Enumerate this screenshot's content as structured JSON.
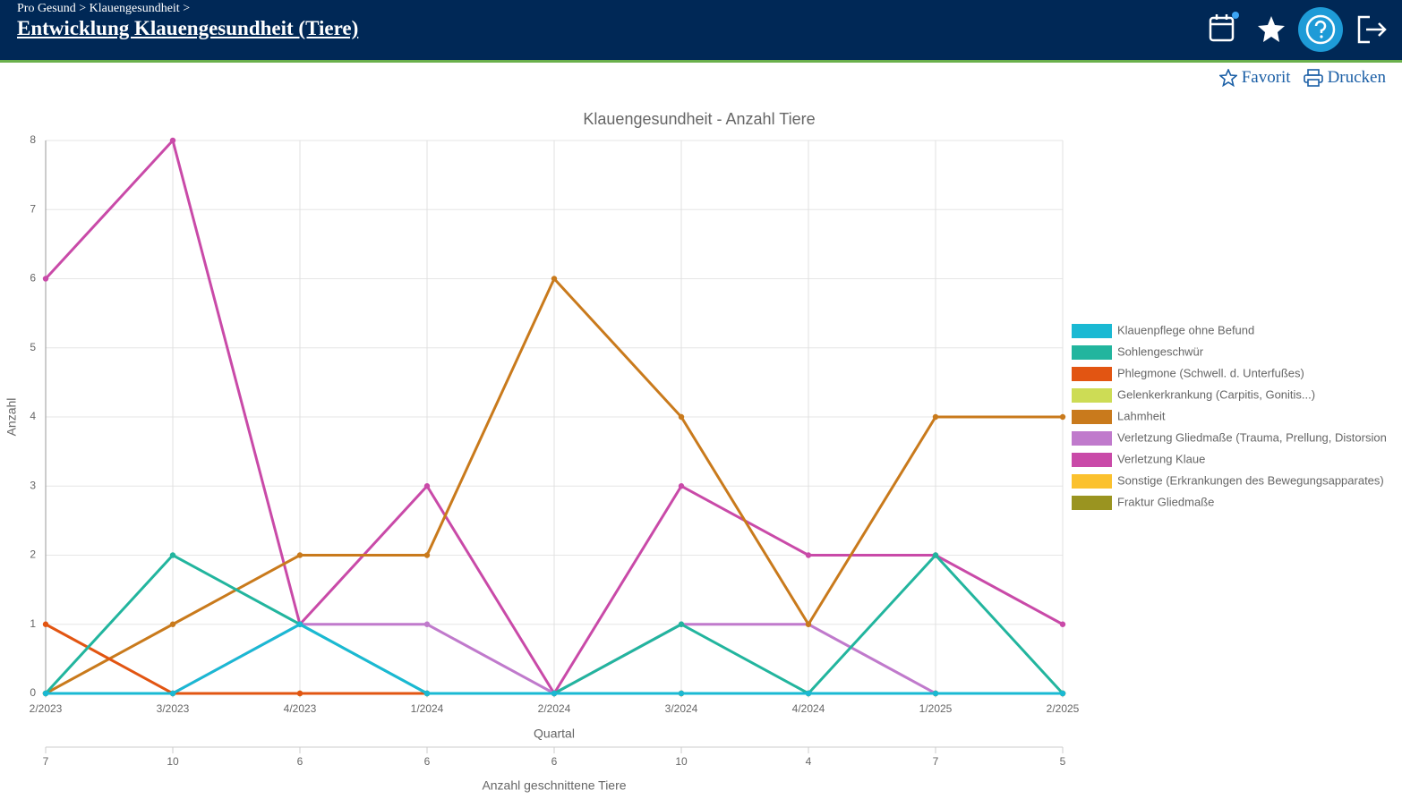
{
  "header": {
    "breadcrumb": "Pro Gesund > Klauengesundheit >",
    "title": "Entwicklung Klauengesundheit (Tiere)"
  },
  "actions": {
    "favorite": "Favorit",
    "print": "Drucken"
  },
  "chart_data": {
    "type": "line",
    "title": "Klauengesundheit - Anzahl Tiere",
    "x_label": "Quartal",
    "y_label": "Anzahl",
    "categories": [
      "2/2023",
      "3/2023",
      "4/2023",
      "1/2024",
      "2/2024",
      "3/2024",
      "4/2024",
      "1/2025",
      "2/2025"
    ],
    "secondary_axis_label": "Anzahl geschnittene Tiere",
    "secondary_categories": [
      7,
      10,
      6,
      6,
      6,
      10,
      4,
      7,
      5
    ],
    "ylim": [
      0,
      8
    ],
    "yticks": [
      0,
      1,
      2,
      3,
      4,
      5,
      6,
      7,
      8
    ],
    "grid": true,
    "legend": "right",
    "series": [
      {
        "name": "Klauenpflege ohne Befund",
        "color": "#1ab9d3",
        "values": [
          0,
          0,
          1,
          0,
          0,
          0,
          0,
          0,
          0
        ]
      },
      {
        "name": "Sohlengeschwür",
        "color": "#22b59e",
        "values": [
          0,
          2,
          1,
          0,
          0,
          1,
          0,
          2,
          0
        ]
      },
      {
        "name": "Phlegmone (Schwell. d. Unterfußes)",
        "color": "#e25512",
        "values": [
          1,
          0,
          0,
          0,
          0,
          0,
          0,
          0,
          0
        ]
      },
      {
        "name": "Gelenkerkrankung (Carpitis, Gonitis...)",
        "color": "#cddc55",
        "values": [
          0,
          0,
          0,
          0,
          0,
          0,
          0,
          0,
          0
        ]
      },
      {
        "name": "Lahmheit",
        "color": "#c97a1c",
        "values": [
          0,
          1,
          2,
          2,
          6,
          4,
          1,
          4,
          4
        ]
      },
      {
        "name": "Verletzung Gliedmaße (Trauma, Prellung, Distorsion",
        "color": "#c07acc",
        "values": [
          0,
          0,
          1,
          1,
          0,
          1,
          1,
          0,
          0
        ]
      },
      {
        "name": "Verletzung Klaue",
        "color": "#c94aa8",
        "values": [
          6,
          8,
          1,
          3,
          0,
          3,
          2,
          2,
          1
        ]
      },
      {
        "name": "Sonstige (Erkrankungen des Bewegungsapparates)",
        "color": "#fbc12e",
        "values": [
          0,
          0,
          0,
          0,
          0,
          0,
          0,
          0,
          0
        ]
      },
      {
        "name": "Fraktur Gliedmaße",
        "color": "#9a9420",
        "values": [
          0,
          0,
          0,
          0,
          0,
          0,
          0,
          0,
          0
        ]
      }
    ]
  }
}
